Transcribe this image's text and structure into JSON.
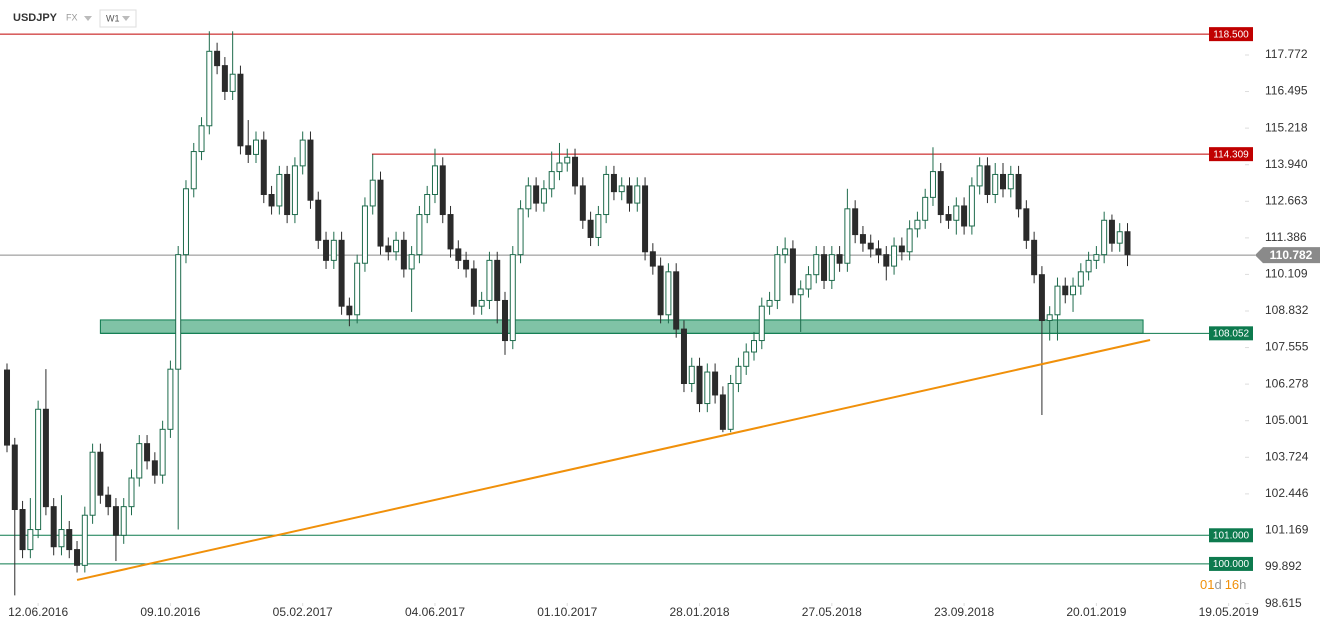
{
  "chart_data": {
    "type": "candlestick",
    "symbol": "USDJPY",
    "market": "FX",
    "interval": "W1",
    "countdown": {
      "days": "01",
      "days_unit": "d",
      "hours": "16",
      "hours_unit": "h"
    },
    "up_color": "#1e6b4c",
    "down_color": "#2b2b2b",
    "xlim": [
      -0.9,
      159.1
    ],
    "ylim": [
      97.867,
      119.692
    ],
    "xticks": [
      {
        "value": 4,
        "label": "12.06.2016"
      },
      {
        "value": 21,
        "label": "09.10.2016"
      },
      {
        "value": 38,
        "label": "05.02.2017"
      },
      {
        "value": 55,
        "label": "04.06.2017"
      },
      {
        "value": 72,
        "label": "01.10.2017"
      },
      {
        "value": 89,
        "label": "28.01.2018"
      },
      {
        "value": 106,
        "label": "27.05.2018"
      },
      {
        "value": 123,
        "label": "23.09.2018"
      },
      {
        "value": 140,
        "label": "20.01.2019"
      },
      {
        "value": 157,
        "label": "19.05.2019"
      }
    ],
    "yticks": [
      117.772,
      116.495,
      115.218,
      {
        "value": 113.94,
        "label": "113.940"
      },
      112.663,
      111.386,
      110.109,
      108.832,
      107.555,
      106.278,
      105.001,
      103.724,
      102.446,
      101.169,
      99.892,
      98.615
    ],
    "open": [
      106.77,
      104.15,
      101.9,
      100.5,
      101.2,
      105.4,
      102.0,
      100.6,
      101.2,
      100.5,
      99.95,
      101.7,
      103.9,
      102.4,
      102.0,
      101.0,
      102.0,
      103.0,
      104.2,
      103.6,
      103.1,
      104.7,
      106.8,
      110.8,
      113.1,
      114.4,
      115.3,
      117.9,
      117.4,
      116.5,
      117.1,
      114.6,
      114.3,
      114.8,
      112.9,
      112.5,
      113.6,
      112.2,
      113.9,
      114.8,
      112.7,
      111.3,
      110.6,
      111.3,
      109.0,
      108.7,
      110.5,
      112.5,
      113.4,
      111.1,
      110.9,
      111.3,
      110.3,
      110.8,
      112.2,
      112.9,
      113.9,
      112.2,
      111.0,
      110.6,
      110.3,
      109.0,
      109.2,
      110.6,
      109.2,
      107.8,
      110.8,
      112.4,
      113.2,
      112.6,
      113.1,
      113.7,
      114.0,
      114.2,
      113.2,
      112.0,
      111.4,
      112.2,
      113.6,
      113.0,
      113.2,
      112.6,
      113.2,
      110.9,
      110.4,
      108.7,
      110.2,
      108.2,
      106.3,
      106.9,
      105.6,
      106.7,
      105.9,
      104.7,
      106.3,
      106.9,
      107.4,
      107.8,
      109.0,
      109.2,
      110.8,
      111.0,
      109.4,
      109.6,
      110.1,
      110.8,
      109.9,
      110.8,
      110.5,
      112.4,
      111.5,
      111.2,
      111.0,
      110.8,
      110.4,
      111.1,
      110.9,
      111.7,
      112.0,
      112.8,
      113.7,
      112.2,
      112.0,
      112.5,
      111.8,
      113.2,
      113.9,
      112.9,
      113.6,
      113.1,
      113.6,
      112.4,
      111.3,
      110.1,
      108.5,
      108.7,
      109.7,
      109.4,
      109.7,
      110.2,
      110.6,
      110.8,
      112.0,
      111.2,
      111.6
    ],
    "high": [
      107.0,
      104.4,
      102.2,
      102.3,
      105.7,
      106.8,
      102.3,
      102.4,
      101.5,
      100.8,
      102.0,
      104.2,
      104.2,
      102.7,
      102.3,
      102.3,
      103.3,
      104.5,
      104.5,
      103.9,
      105.0,
      107.1,
      111.1,
      113.4,
      114.7,
      115.6,
      118.6,
      118.2,
      117.7,
      118.6,
      117.4,
      115.5,
      115.1,
      115.1,
      113.2,
      113.9,
      113.9,
      114.2,
      115.1,
      115.1,
      113.0,
      111.6,
      111.6,
      111.6,
      109.3,
      110.8,
      112.8,
      114.3,
      113.7,
      111.4,
      111.6,
      111.6,
      111.1,
      112.5,
      113.2,
      114.5,
      114.2,
      112.5,
      111.3,
      110.9,
      110.6,
      109.5,
      110.9,
      110.9,
      109.5,
      111.1,
      112.7,
      113.5,
      113.5,
      113.4,
      114.4,
      114.7,
      114.5,
      114.5,
      113.5,
      112.3,
      112.5,
      113.9,
      113.9,
      113.5,
      113.5,
      113.5,
      113.5,
      111.2,
      110.7,
      110.5,
      110.5,
      108.5,
      107.2,
      107.2,
      107.0,
      107.0,
      106.2,
      106.6,
      107.2,
      107.7,
      108.1,
      109.3,
      109.5,
      111.1,
      111.4,
      111.3,
      109.9,
      110.4,
      111.1,
      111.1,
      111.1,
      111.1,
      113.1,
      112.7,
      111.8,
      111.5,
      111.3,
      111.1,
      111.4,
      111.4,
      112.0,
      112.3,
      113.1,
      114.55,
      114.0,
      112.5,
      112.8,
      112.8,
      113.5,
      114.2,
      114.2,
      114.0,
      114.0,
      113.9,
      113.9,
      112.7,
      111.6,
      110.4,
      109.0,
      110.0,
      110.0,
      110.0,
      110.5,
      110.9,
      111.1,
      112.3,
      112.2,
      111.9,
      111.9
    ],
    "low": [
      103.9,
      98.9,
      100.2,
      100.2,
      100.9,
      101.7,
      100.3,
      100.3,
      100.2,
      99.7,
      99.7,
      101.4,
      102.1,
      101.7,
      100.1,
      100.7,
      101.7,
      102.7,
      103.3,
      102.8,
      102.8,
      104.4,
      101.2,
      110.5,
      112.8,
      114.1,
      115.0,
      117.1,
      116.2,
      116.2,
      114.3,
      114.0,
      114.0,
      112.6,
      112.2,
      112.2,
      111.9,
      111.9,
      113.6,
      112.4,
      111.0,
      110.3,
      110.3,
      108.7,
      108.3,
      108.4,
      110.2,
      112.2,
      110.8,
      110.6,
      110.6,
      110.0,
      108.8,
      110.5,
      111.9,
      112.6,
      111.9,
      110.7,
      110.3,
      110.0,
      108.7,
      108.7,
      108.9,
      108.4,
      107.3,
      107.5,
      110.5,
      112.1,
      112.3,
      112.3,
      112.8,
      113.4,
      113.7,
      112.9,
      111.7,
      111.1,
      111.1,
      111.9,
      112.7,
      112.7,
      112.3,
      112.3,
      110.6,
      110.1,
      108.4,
      108.4,
      107.9,
      106.0,
      106.0,
      105.3,
      105.3,
      105.6,
      104.6,
      104.6,
      106.0,
      106.6,
      107.1,
      107.5,
      108.7,
      108.9,
      110.5,
      109.1,
      108.1,
      109.3,
      109.8,
      109.6,
      109.6,
      110.2,
      110.2,
      111.2,
      110.9,
      110.7,
      110.5,
      109.9,
      110.1,
      110.6,
      110.6,
      111.4,
      111.7,
      112.5,
      111.9,
      111.7,
      111.5,
      111.5,
      111.5,
      112.9,
      112.6,
      112.6,
      112.8,
      112.8,
      112.1,
      111.0,
      109.8,
      105.2,
      107.8,
      107.8,
      109.1,
      108.8,
      109.4,
      109.9,
      110.3,
      110.5,
      110.9,
      110.9,
      110.4
    ],
    "close": [
      104.15,
      101.9,
      100.5,
      101.2,
      105.4,
      102.0,
      100.6,
      101.2,
      100.5,
      99.95,
      101.7,
      103.9,
      102.4,
      102.0,
      101.0,
      102.0,
      103.0,
      104.2,
      103.6,
      103.1,
      104.7,
      106.8,
      110.8,
      113.1,
      114.4,
      115.3,
      117.9,
      117.4,
      116.5,
      117.1,
      114.6,
      114.3,
      114.8,
      112.9,
      112.5,
      113.6,
      112.2,
      113.9,
      114.8,
      112.7,
      111.3,
      110.6,
      111.3,
      109.0,
      108.7,
      110.5,
      112.5,
      113.4,
      111.1,
      110.9,
      111.3,
      110.3,
      110.8,
      112.2,
      112.9,
      113.9,
      112.2,
      111.0,
      110.6,
      110.3,
      109.0,
      109.2,
      110.6,
      109.2,
      107.8,
      110.8,
      112.4,
      113.2,
      112.6,
      113.1,
      113.7,
      114.0,
      114.2,
      113.2,
      112.0,
      111.4,
      112.2,
      113.6,
      113.0,
      113.2,
      112.6,
      113.2,
      110.9,
      110.4,
      108.7,
      110.2,
      108.2,
      106.3,
      106.9,
      105.6,
      106.7,
      105.9,
      104.7,
      106.3,
      106.9,
      107.4,
      107.8,
      109.0,
      109.2,
      110.8,
      111.0,
      109.4,
      109.6,
      110.1,
      110.8,
      109.9,
      110.8,
      110.5,
      112.4,
      111.5,
      111.2,
      111.0,
      110.8,
      110.4,
      111.1,
      110.9,
      111.7,
      112.0,
      112.8,
      113.7,
      112.2,
      112.0,
      112.5,
      111.8,
      113.2,
      113.9,
      112.9,
      113.6,
      113.1,
      113.6,
      112.4,
      111.3,
      110.1,
      108.5,
      108.7,
      109.7,
      109.4,
      109.7,
      110.2,
      110.6,
      110.8,
      112.0,
      111.2,
      111.6,
      110.8
    ],
    "levels": [
      {
        "price": {
          "value": 118.5,
          "label": "118.500"
        },
        "color": "#c00000"
      },
      {
        "price": 114.309,
        "color": "#c00000",
        "from": 46.9
      },
      {
        "price": 108.052,
        "color": "#0d7a4e",
        "from": 12,
        "band_top": 108.52,
        "band_to": 146
      },
      {
        "price": {
          "value": 101.0,
          "label": "101.000"
        },
        "color": "#0d7a4e"
      },
      {
        "price": {
          "value": 100.0,
          "label": "100.000"
        },
        "color": "#0d7a4e"
      }
    ],
    "last_price": 110.782,
    "last_price_color": "#8a8a8a",
    "trendline": {
      "x": [
        9,
        146.9
      ],
      "y": [
        99.44,
        107.82
      ],
      "color": "#f0900a"
    }
  }
}
